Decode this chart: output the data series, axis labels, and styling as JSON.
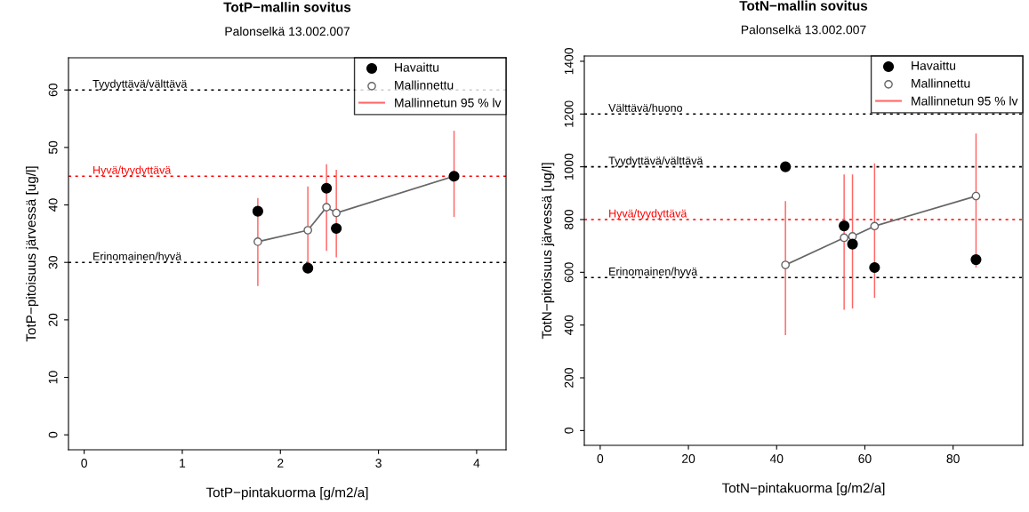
{
  "chart_data": [
    {
      "type": "scatter",
      "title": "TotP−mallin sovitus",
      "subtitle": "Palonselkä 13.002.007",
      "xlabel": "TotP−pintakuorma [g/m2/a]",
      "ylabel": "TotP−pitoisuus järvessä [ug/l]",
      "x": [
        1.77,
        2.28,
        2.47,
        2.57,
        3.77
      ],
      "series": [
        {
          "name": "Havaittu",
          "type": "scatter",
          "color": "#000000",
          "marker": "circle",
          "values": [
            38.9,
            29.0,
            42.9,
            35.9,
            45.0
          ]
        },
        {
          "name": "Mallinnettu",
          "type": "line",
          "color": "#666666",
          "marker": "circle",
          "values": [
            33.6,
            35.6,
            39.6,
            38.6,
            45.0
          ]
        },
        {
          "name": "Mallinnetun 95 % lv",
          "type": "bar",
          "color": "#ff6666",
          "base": [
            25.9,
            28.1,
            32.0,
            30.9,
            37.9
          ],
          "values": [
            15.3,
            15.1,
            15.1,
            15.2,
            15.0
          ]
        }
      ],
      "ref_lines": [
        {
          "axis": "y",
          "value": 60,
          "label": "Tyydyttävä/välttävä",
          "color": "#000000",
          "line_style": "dotted"
        },
        {
          "axis": "y",
          "value": 45,
          "label": "Hyvä/tyydyttävä",
          "color": "#ff0000",
          "line_style": "dotted"
        },
        {
          "axis": "y",
          "value": 30,
          "label": "Erinomainen/hyvä",
          "color": "#000000",
          "line_style": "dotted"
        }
      ],
      "xlim": [
        -0.16,
        4.3
      ],
      "ylim": [
        -2.6,
        65.6
      ],
      "xticks": [
        0,
        1,
        2,
        3,
        4
      ],
      "yticks": [
        0,
        10,
        20,
        30,
        40,
        50,
        60
      ],
      "grid": false,
      "legend": "top right"
    },
    {
      "type": "scatter",
      "title": "TotN−mallin sovitus",
      "subtitle": "Palonselkä 13.002.007",
      "xlabel": "TotN−pintakuorma [g/m2/a]",
      "ylabel": "TotN−pitoisuus järvessä [ug/l]",
      "x": [
        42.0,
        55.3,
        57.2,
        62.2,
        85.2
      ],
      "series": [
        {
          "name": "Havaittu",
          "type": "scatter",
          "color": "#000000",
          "marker": "circle",
          "values": [
            1000,
            776,
            707,
            618,
            648
          ]
        },
        {
          "name": "Mallinnettu",
          "type": "line",
          "color": "#666666",
          "marker": "circle",
          "values": [
            628,
            731,
            736,
            775,
            889
          ]
        },
        {
          "name": "Mallinnetun 95 % lv",
          "type": "bar",
          "color": "#ff6666",
          "base": [
            362,
            458,
            463,
            503,
            618
          ],
          "values": [
            508,
            513,
            508,
            510,
            508
          ]
        }
      ],
      "ref_lines": [
        {
          "axis": "y",
          "value": 1200,
          "label": "Välttävä/huono",
          "color": "#000000",
          "line_style": "dotted"
        },
        {
          "axis": "y",
          "value": 1000,
          "label": "Tyydyttävä/välttävä",
          "color": "#000000",
          "line_style": "dotted"
        },
        {
          "axis": "y",
          "value": 800,
          "label": "Hyvä/tyydyttävä",
          "color": "#ff0000",
          "line_style": "dotted"
        },
        {
          "axis": "y",
          "value": 580,
          "label": "Erinomainen/hyvä",
          "color": "#000000",
          "line_style": "dotted"
        }
      ],
      "xlim": [
        -3.6,
        95.8
      ],
      "ylim": [
        -56,
        1420
      ],
      "xticks": [
        0,
        20,
        40,
        60,
        80
      ],
      "yticks": [
        0,
        200,
        400,
        600,
        800,
        1000,
        1200,
        1400
      ],
      "grid": false,
      "legend": "top right"
    }
  ]
}
